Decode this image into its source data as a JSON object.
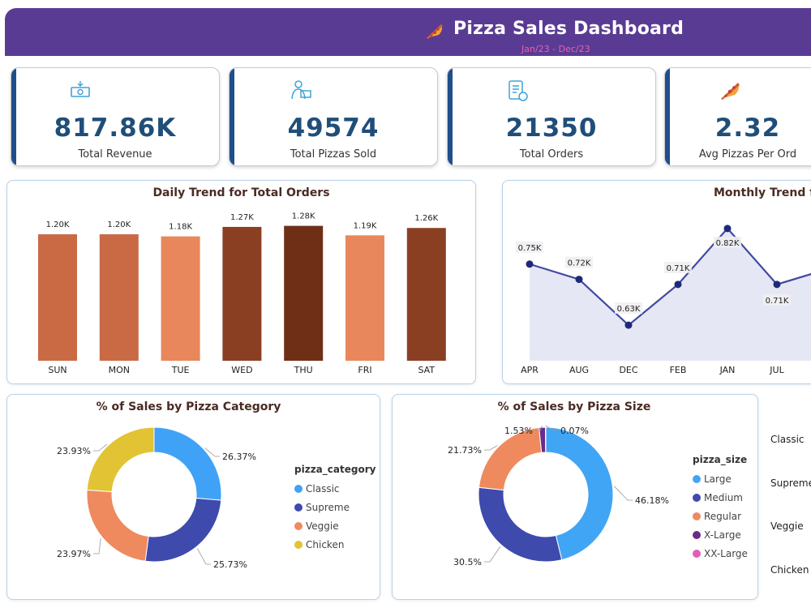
{
  "header": {
    "title": "Pizza Sales Dashboard",
    "subtitle": "Jan/23 - Dec/23",
    "icon": "pizza-icon"
  },
  "kpis": [
    {
      "value": "817.86K",
      "label": "Total Revenue",
      "icon": "money-icon"
    },
    {
      "value": "49574",
      "label": "Total Pizzas Sold",
      "icon": "delivery-person-icon"
    },
    {
      "value": "21350",
      "label": "Total Orders",
      "icon": "order-list-icon"
    },
    {
      "value": "2.32",
      "label": "Avg Pizzas Per Ord",
      "icon": "pizza-slice-icon"
    }
  ],
  "colors": {
    "header": "#5a3b93",
    "kpi_value": "#1f4e79",
    "bar_light": "#e8875c",
    "bar_mid": "#c96a45",
    "bar_dark": "#8b3f22",
    "bar_darkest": "#6f2f16",
    "line": "#3f4aa0",
    "area": "#e6e7f4",
    "classic": "#3fa2f7",
    "supreme": "#3f4aad",
    "veggie": "#ef8a5f",
    "chicken": "#e2c333",
    "large": "#41a5f5",
    "medium": "#3f4aad",
    "regular": "#ef8a5f",
    "xlarge": "#6a2b8c",
    "xxlarge": "#e25fb7"
  },
  "chart_data": [
    {
      "type": "bar",
      "title": "Daily Trend for Total Orders",
      "categories": [
        "SUN",
        "MON",
        "TUE",
        "WED",
        "THU",
        "FRI",
        "SAT"
      ],
      "values": [
        1200,
        1200,
        1180,
        1270,
        1280,
        1190,
        1260
      ],
      "labels": [
        "1.20K",
        "1.20K",
        "1.18K",
        "1.27K",
        "1.28K",
        "1.19K",
        "1.26K"
      ],
      "ylim": [
        0,
        1400
      ]
    },
    {
      "type": "line",
      "title": "Monthly Trend fo",
      "categories": [
        "APR",
        "AUG",
        "DEC",
        "FEB",
        "JAN",
        "JUL"
      ],
      "values": [
        750,
        720,
        630,
        710,
        820,
        710
      ],
      "labels": [
        "0.75K",
        "0.72K",
        "0.63K",
        "0.71K",
        "0.82K",
        "0.71K"
      ],
      "ylim": [
        560,
        850
      ]
    },
    {
      "type": "pie",
      "title": "% of Sales by Pizza Category",
      "legend_title": "pizza_category",
      "categories": [
        "Classic",
        "Supreme",
        "Veggie",
        "Chicken"
      ],
      "values": [
        26.37,
        25.73,
        23.97,
        23.93
      ],
      "labels": [
        "26.37%",
        "25.73%",
        "23.97%",
        "23.93%"
      ]
    },
    {
      "type": "pie",
      "title": "% of Sales by Pizza Size",
      "legend_title": "pizza_size",
      "categories": [
        "Large",
        "Medium",
        "Regular",
        "X-Large",
        "XX-Large"
      ],
      "values": [
        46.18,
        30.5,
        21.73,
        1.53,
        0.07
      ],
      "labels": [
        "46.18%",
        "30.5%",
        "21.73%",
        "1.53%",
        "0.07%"
      ]
    }
  ],
  "side_labels": [
    "Classic",
    "Supreme",
    "Veggie",
    "Chicken"
  ]
}
